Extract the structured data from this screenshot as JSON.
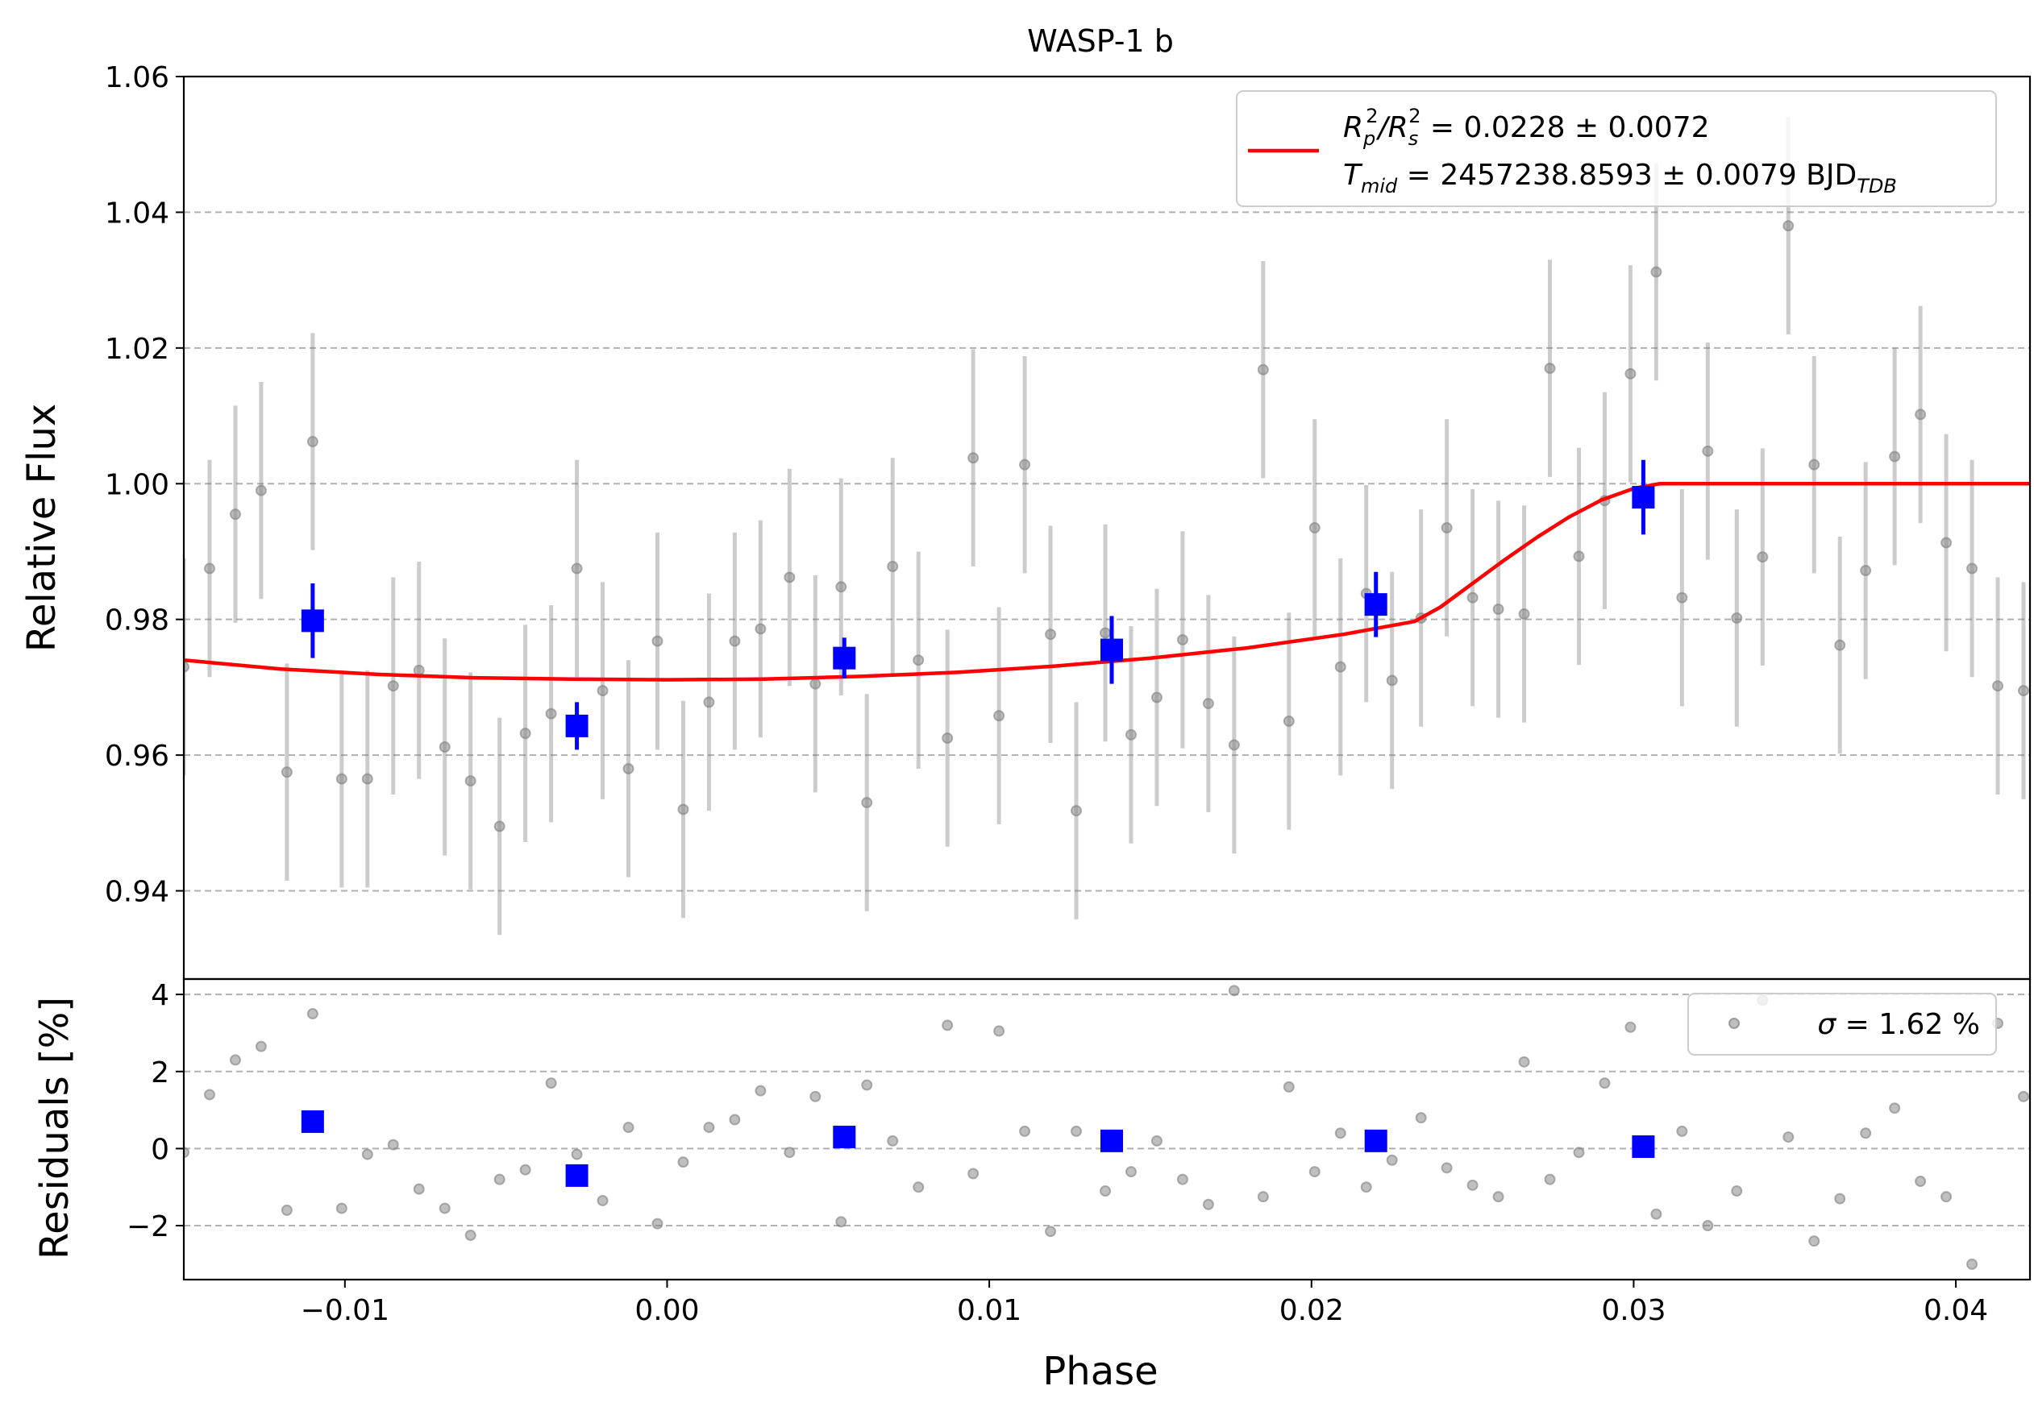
{
  "chart_data": [
    {
      "type": "scatter",
      "panel": "main",
      "title": "WASP-1 b",
      "ylabel": "Relative Flux",
      "xlim": [
        -0.015,
        0.0423
      ],
      "ylim": [
        0.927,
        1.06
      ],
      "yticks": [
        0.94,
        0.96,
        0.98,
        1.0,
        1.02,
        1.04,
        1.06
      ],
      "ytick_labels": [
        "0.94",
        "0.96",
        "0.98",
        "1.00",
        "1.02",
        "1.04",
        "1.06"
      ],
      "grid": "horizontal dashed",
      "legend": {
        "placement": "top-right",
        "line1": {
          "prefix": "R",
          "sub1": "p",
          "sup1": "2",
          "mid": "/R",
          "sub2": "s",
          "sup2": "2",
          "rest": " = 0.0228 ± 0.0072"
        },
        "line2": {
          "prefix": "T",
          "sub1": "mid",
          "rest": " = 2457238.8593 ± 0.0079 BJD",
          "sub2": "TDB"
        }
      },
      "raw_points": {
        "color": "#808080",
        "x": [
          -0.015,
          -0.0142,
          -0.0134,
          -0.0126,
          -0.0118,
          -0.011,
          -0.0101,
          -0.0093,
          -0.0085,
          -0.0077,
          -0.0069,
          -0.0061,
          -0.0052,
          -0.0044,
          -0.0036,
          -0.0028,
          -0.002,
          -0.0012,
          -0.0003,
          0.0005,
          0.0013,
          0.0021,
          0.0029,
          0.0038,
          0.0046,
          0.0054,
          0.0062,
          0.007,
          0.0078,
          0.0087,
          0.0095,
          0.0103,
          0.0111,
          0.0119,
          0.0127,
          0.0136,
          0.0144,
          0.0152,
          0.016,
          0.0168,
          0.0176,
          0.0185,
          0.0193,
          0.0201,
          0.0209,
          0.0217,
          0.0225,
          0.0234,
          0.0242,
          0.025,
          0.0258,
          0.0266,
          0.0274,
          0.0283,
          0.0291,
          0.0299,
          0.0307,
          0.0315,
          0.0323,
          0.0332,
          0.034,
          0.0348,
          0.0356,
          0.0364,
          0.0372,
          0.0381,
          0.0389,
          0.0397,
          0.0405,
          0.0413,
          0.0421
        ],
        "y": [
          0.973,
          0.9875,
          0.9955,
          0.999,
          0.9575,
          1.0062,
          0.9565,
          0.9565,
          0.9702,
          0.9725,
          0.9612,
          0.9562,
          0.9495,
          0.9632,
          0.9661,
          0.9875,
          0.9695,
          0.958,
          0.9768,
          0.952,
          0.9678,
          0.9768,
          0.9786,
          0.9862,
          0.9705,
          0.9848,
          0.953,
          0.9878,
          0.974,
          0.9625,
          1.0038,
          0.9658,
          1.0028,
          0.9778,
          0.9518,
          0.978,
          0.963,
          0.9685,
          0.977,
          0.9676,
          0.9615,
          1.0168,
          0.965,
          0.9935,
          0.973,
          0.9838,
          0.971,
          0.9802,
          0.9935,
          0.9832,
          0.9815,
          0.9808,
          1.017,
          0.9893,
          0.9975,
          1.0162,
          1.0312,
          0.9832,
          1.0048,
          0.9802,
          0.9892,
          1.038,
          1.0028,
          0.9762,
          0.9872,
          1.004,
          1.0102,
          0.9913,
          0.9875,
          0.9702,
          0.9695
        ],
        "yerr": [
          0.016,
          0.016,
          0.016,
          0.016,
          0.016,
          0.016,
          0.016,
          0.016,
          0.016,
          0.016,
          0.016,
          0.016,
          0.016,
          0.016,
          0.016,
          0.016,
          0.016,
          0.016,
          0.016,
          0.016,
          0.016,
          0.016,
          0.016,
          0.016,
          0.016,
          0.016,
          0.016,
          0.016,
          0.016,
          0.016,
          0.016,
          0.016,
          0.016,
          0.016,
          0.016,
          0.016,
          0.016,
          0.016,
          0.016,
          0.016,
          0.016,
          0.016,
          0.016,
          0.016,
          0.016,
          0.016,
          0.016,
          0.016,
          0.016,
          0.016,
          0.016,
          0.016,
          0.016,
          0.016,
          0.016,
          0.016,
          0.016,
          0.016,
          0.016,
          0.016,
          0.016,
          0.016,
          0.016,
          0.016,
          0.016,
          0.016,
          0.016,
          0.016,
          0.016,
          0.016,
          0.016
        ]
      },
      "binned_points": {
        "color": "#0000ff",
        "x": [
          -0.011,
          -0.0028,
          0.0055,
          0.0138,
          0.022,
          0.0303
        ],
        "y": [
          0.9798,
          0.9643,
          0.9743,
          0.9755,
          0.9822,
          0.998
        ],
        "yerr": [
          0.0055,
          0.0035,
          0.003,
          0.005,
          0.0048,
          0.0055
        ]
      },
      "model": {
        "color": "#ff0000",
        "x": [
          -0.015,
          -0.012,
          -0.009,
          -0.006,
          -0.003,
          0.0,
          0.003,
          0.006,
          0.009,
          0.012,
          0.015,
          0.018,
          0.021,
          0.0232,
          0.024,
          0.025,
          0.026,
          0.027,
          0.028,
          0.029,
          0.03,
          0.0308,
          0.0314,
          0.034,
          0.038,
          0.0423
        ],
        "y": [
          0.974,
          0.9727,
          0.9719,
          0.9714,
          0.9712,
          0.9711,
          0.9712,
          0.9716,
          0.9722,
          0.9731,
          0.9743,
          0.9758,
          0.9778,
          0.9797,
          0.9818,
          0.9853,
          0.9888,
          0.9921,
          0.9951,
          0.9976,
          0.9993,
          1.0,
          1.0,
          1.0,
          1.0,
          1.0
        ]
      }
    },
    {
      "type": "scatter",
      "panel": "residuals",
      "xlabel": "Phase",
      "ylabel": "Residuals [%]",
      "xlim": [
        -0.015,
        0.0423
      ],
      "ylim": [
        -3.4,
        4.4
      ],
      "yticks": [
        -2,
        0,
        2,
        4
      ],
      "ytick_labels": [
        "−2",
        "0",
        "2",
        "4"
      ],
      "xticks": [
        -0.01,
        0.0,
        0.01,
        0.02,
        0.03,
        0.04
      ],
      "xtick_labels": [
        "−0.01",
        "0.00",
        "0.01",
        "0.02",
        "0.03",
        "0.04"
      ],
      "grid": "horizontal dashed",
      "legend": {
        "placement": "top-right",
        "label_sym": "σ",
        "label_rest": " = 1.62 %"
      },
      "raw_points": {
        "color": "#808080",
        "x": [
          -0.015,
          -0.0142,
          -0.0134,
          -0.0126,
          -0.0118,
          -0.011,
          -0.0101,
          -0.0093,
          -0.0085,
          -0.0077,
          -0.0069,
          -0.0061,
          -0.0052,
          -0.0044,
          -0.0036,
          -0.0028,
          -0.002,
          -0.0012,
          -0.0003,
          0.0005,
          0.0013,
          0.0021,
          0.0029,
          0.0038,
          0.0046,
          0.0054,
          0.0062,
          0.007,
          0.0078,
          0.0087,
          0.0095,
          0.0103,
          0.0111,
          0.0119,
          0.0127,
          0.0136,
          0.0144,
          0.0152,
          0.016,
          0.0168,
          0.0176,
          0.0185,
          0.0193,
          0.0201,
          0.0209,
          0.0217,
          0.0225,
          0.0234,
          0.0242,
          0.025,
          0.0258,
          0.0266,
          0.0274,
          0.0283,
          0.0291,
          0.0299,
          0.0307,
          0.0315,
          0.0323,
          0.0332,
          0.034,
          0.0348,
          0.0356,
          0.0364,
          0.0372,
          0.0381,
          0.0389,
          0.0397,
          0.0405,
          0.0413,
          0.0421
        ],
        "y": [
          -0.1,
          1.4,
          2.3,
          2.65,
          -1.6,
          3.5,
          -1.55,
          -0.15,
          0.1,
          -1.05,
          -1.55,
          -2.25,
          -0.8,
          -0.55,
          1.7,
          -0.15,
          -1.35,
          0.55,
          -1.95,
          -0.35,
          0.55,
          0.75,
          1.5,
          -0.1,
          1.35,
          -1.9,
          1.65,
          0.2,
          -1.0,
          3.2,
          -0.65,
          3.05,
          0.45,
          -2.15,
          0.45,
          -1.1,
          -0.6,
          0.2,
          -0.8,
          -1.45,
          4.1,
          -1.25,
          1.6,
          -0.6,
          0.4,
          -1.0,
          -0.3,
          0.8,
          -0.5,
          -0.95,
          -1.25,
          2.25,
          -0.8,
          -0.1,
          1.7,
          3.15,
          -1.7,
          0.45,
          -2.0,
          -1.1,
          3.85,
          0.3,
          -2.4,
          -1.3,
          0.4,
          1.05,
          -0.85,
          -1.25,
          -3.0,
          3.25,
          1.35
        ]
      },
      "binned_points": {
        "color": "#0000ff",
        "x": [
          -0.011,
          -0.0028,
          0.0055,
          0.0138,
          0.022,
          0.0303
        ],
        "y": [
          0.7,
          -0.7,
          0.3,
          0.2,
          0.2,
          0.05
        ]
      }
    }
  ]
}
